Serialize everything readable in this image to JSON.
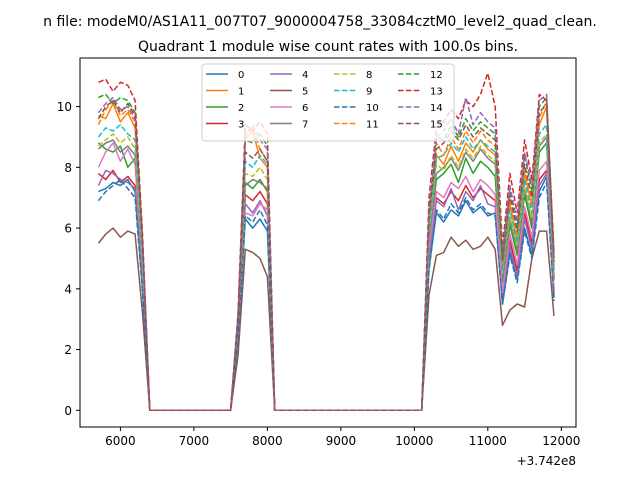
{
  "chart_data": {
    "type": "line",
    "suptitle": "n file: modeM0/AS1A11_007T07_9000004758_33084cztM0_level2_quad_clean.",
    "title": "Quadrant 1 module wise count rates with 100.0s bins.",
    "xlabel": "",
    "ylabel": "",
    "x_offset_label": "+3.742e8",
    "xlim": [
      5450,
      12200
    ],
    "ylim": [
      -0.55,
      11.6
    ],
    "xticks": [
      6000,
      7000,
      8000,
      9000,
      10000,
      11000,
      12000
    ],
    "xtick_labels": [
      "6000",
      "7000",
      "8000",
      "9000",
      "10000",
      "11000",
      "12000"
    ],
    "yticks": [
      0,
      2,
      4,
      6,
      8,
      10
    ],
    "ytick_labels": [
      "0",
      "2",
      "4",
      "6",
      "8",
      "10"
    ],
    "grid": false,
    "legend_position": "top-center",
    "legend_columns": 4,
    "x": [
      5700,
      5800,
      5900,
      6000,
      6100,
      6200,
      6300,
      6400,
      7500,
      7600,
      7700,
      7800,
      7900,
      8000,
      8100,
      10100,
      10200,
      10300,
      10400,
      10500,
      10600,
      10700,
      10800,
      10900,
      11000,
      11100,
      11200,
      11300,
      11400,
      11500,
      11600,
      11700,
      11800,
      11900
    ],
    "series": [
      {
        "name": "0",
        "color": "#1f77b4",
        "dash": "solid",
        "values": [
          7.2,
          7.3,
          7.5,
          7.4,
          7.6,
          7.2,
          4.0,
          0,
          0,
          2.3,
          6.3,
          6.0,
          6.3,
          5.9,
          0,
          0,
          4.7,
          6.5,
          6.2,
          6.6,
          6.4,
          6.9,
          6.5,
          6.7,
          6.4,
          6.5,
          3.5,
          5.2,
          4.3,
          6.0,
          5.1,
          7.2,
          7.7,
          3.7
        ]
      },
      {
        "name": "1",
        "color": "#ff7f0e",
        "dash": "solid",
        "values": [
          9.7,
          9.6,
          10.1,
          9.5,
          9.8,
          9.3,
          5.3,
          0,
          0,
          2.8,
          8.9,
          9.2,
          8.3,
          8.0,
          0,
          0,
          6.1,
          8.4,
          8.1,
          8.7,
          8.2,
          8.8,
          8.5,
          8.9,
          8.6,
          8.4,
          4.7,
          6.8,
          5.6,
          7.8,
          6.7,
          9.4,
          10.0,
          4.7
        ]
      },
      {
        "name": "2",
        "color": "#2ca02c",
        "dash": "solid",
        "values": [
          8.8,
          8.6,
          8.5,
          8.7,
          8.0,
          8.3,
          4.7,
          0,
          0,
          2.6,
          7.5,
          7.3,
          7.6,
          7.2,
          0,
          0,
          5.5,
          7.6,
          7.8,
          8.1,
          7.5,
          8.3,
          7.8,
          8.2,
          8.0,
          7.7,
          4.2,
          6.1,
          5.1,
          7.1,
          6.0,
          8.5,
          8.8,
          4.3
        ]
      },
      {
        "name": "3",
        "color": "#d62728",
        "dash": "solid",
        "values": [
          7.8,
          7.6,
          7.9,
          7.5,
          7.7,
          7.4,
          4.2,
          0,
          0,
          2.4,
          7.1,
          6.9,
          7.2,
          6.8,
          0,
          0,
          5.2,
          7.0,
          6.8,
          7.2,
          6.9,
          7.4,
          7.0,
          7.3,
          7.1,
          6.9,
          3.8,
          5.6,
          4.6,
          6.5,
          5.5,
          7.6,
          7.9,
          3.9
        ]
      },
      {
        "name": "4",
        "color": "#9467bd",
        "dash": "solid",
        "values": [
          7.4,
          7.9,
          7.8,
          7.6,
          7.5,
          7.3,
          4.1,
          0,
          0,
          2.3,
          6.8,
          6.5,
          6.9,
          6.4,
          0,
          0,
          5.0,
          6.9,
          6.7,
          7.3,
          6.6,
          7.2,
          6.9,
          7.4,
          6.8,
          6.7,
          3.7,
          5.4,
          4.4,
          6.3,
          5.3,
          7.4,
          7.8,
          3.8
        ]
      },
      {
        "name": "5",
        "color": "#8c564b",
        "dash": "solid",
        "values": [
          5.5,
          5.8,
          6.0,
          5.7,
          5.9,
          5.8,
          3.2,
          0,
          0,
          1.8,
          5.3,
          5.2,
          5.0,
          4.4,
          0,
          0,
          3.8,
          5.1,
          5.2,
          5.7,
          5.4,
          5.6,
          5.3,
          5.4,
          5.7,
          5.3,
          2.8,
          3.3,
          3.5,
          3.4,
          5.0,
          5.9,
          5.9,
          3.1
        ]
      },
      {
        "name": "6",
        "color": "#e377c2",
        "dash": "solid",
        "values": [
          8.0,
          8.5,
          8.8,
          8.2,
          8.6,
          8.1,
          4.6,
          0,
          0,
          2.5,
          6.5,
          6.4,
          6.8,
          6.6,
          0,
          0,
          5.3,
          7.2,
          7.0,
          7.5,
          7.3,
          7.7,
          7.2,
          7.6,
          7.4,
          7.1,
          3.9,
          5.8,
          4.8,
          6.7,
          5.7,
          7.9,
          8.2,
          4.0
        ]
      },
      {
        "name": "7",
        "color": "#7f7f7f",
        "dash": "solid",
        "values": [
          8.6,
          8.8,
          8.9,
          8.5,
          8.7,
          8.4,
          4.8,
          0,
          0,
          2.7,
          7.4,
          7.6,
          7.5,
          7.3,
          0,
          0,
          5.6,
          7.8,
          8.0,
          8.3,
          7.9,
          8.5,
          8.2,
          8.6,
          8.3,
          8.1,
          4.4,
          6.3,
          5.3,
          7.3,
          6.2,
          8.7,
          9.0,
          4.4
        ]
      },
      {
        "name": "8",
        "color": "#bcbd22",
        "dash": "dashed",
        "values": [
          8.7,
          8.9,
          9.1,
          8.8,
          9.0,
          8.6,
          4.9,
          0,
          0,
          2.7,
          7.8,
          7.7,
          8.0,
          7.6,
          0,
          0,
          5.8,
          8.1,
          7.9,
          8.4,
          8.0,
          8.6,
          8.3,
          8.7,
          8.4,
          8.2,
          4.5,
          6.4,
          5.4,
          7.4,
          6.3,
          8.8,
          9.1,
          4.5
        ]
      },
      {
        "name": "9",
        "color": "#17becf",
        "dash": "dashed",
        "values": [
          9.0,
          9.3,
          9.2,
          9.4,
          9.1,
          8.9,
          5.0,
          0,
          0,
          2.8,
          8.2,
          8.0,
          8.4,
          8.1,
          0,
          0,
          5.9,
          8.3,
          8.4,
          8.8,
          8.5,
          9.0,
          8.6,
          8.9,
          8.7,
          8.5,
          4.6,
          6.6,
          5.5,
          7.6,
          6.5,
          9.1,
          9.4,
          4.6
        ]
      },
      {
        "name": "10",
        "color": "#1f77b4",
        "dash": "dashed",
        "values": [
          6.9,
          7.2,
          7.4,
          7.6,
          7.3,
          7.0,
          3.9,
          0,
          0,
          2.2,
          6.4,
          6.2,
          6.6,
          6.1,
          0,
          0,
          4.6,
          6.6,
          6.3,
          6.8,
          6.5,
          7.0,
          6.6,
          6.8,
          6.5,
          6.4,
          3.5,
          5.1,
          4.2,
          5.9,
          5.0,
          7.0,
          7.5,
          3.6
        ]
      },
      {
        "name": "11",
        "color": "#ff7f0e",
        "dash": "dashed",
        "values": [
          9.4,
          9.9,
          10.2,
          9.7,
          9.9,
          9.5,
          5.4,
          0,
          0,
          3.0,
          9.0,
          9.3,
          8.6,
          8.2,
          0,
          0,
          6.3,
          8.8,
          8.4,
          9.0,
          8.6,
          9.2,
          8.8,
          9.2,
          8.9,
          8.7,
          4.8,
          7.0,
          5.8,
          8.0,
          6.9,
          9.6,
          10.2,
          4.8
        ]
      },
      {
        "name": "12",
        "color": "#2ca02c",
        "dash": "dashed",
        "values": [
          10.3,
          10.4,
          10.1,
          10.3,
          10.2,
          9.8,
          5.6,
          0,
          0,
          3.0,
          8.9,
          8.8,
          9.1,
          8.7,
          0,
          0,
          6.6,
          9.0,
          8.9,
          9.4,
          9.0,
          9.6,
          9.2,
          9.5,
          9.3,
          9.1,
          5.0,
          7.3,
          6.0,
          8.4,
          7.2,
          10.0,
          10.3,
          5.0
        ]
      },
      {
        "name": "13",
        "color": "#d62728",
        "dash": "dashed",
        "values": [
          10.8,
          10.9,
          10.5,
          10.8,
          10.7,
          10.2,
          5.8,
          0,
          0,
          3.2,
          9.4,
          9.2,
          9.5,
          9.1,
          0,
          0,
          7.0,
          9.3,
          9.5,
          9.9,
          9.6,
          10.2,
          10.0,
          10.4,
          11.1,
          10.0,
          5.4,
          7.8,
          6.5,
          8.9,
          7.6,
          10.4,
          10.2,
          5.2
        ]
      },
      {
        "name": "14",
        "color": "#9467bd",
        "dash": "dashed",
        "values": [
          9.8,
          10.1,
          10.3,
          9.9,
          10.0,
          9.6,
          5.5,
          0,
          0,
          3.0,
          9.1,
          9.4,
          8.9,
          8.6,
          0,
          0,
          6.7,
          9.0,
          9.2,
          9.6,
          9.1,
          10.3,
          9.4,
          9.8,
          9.5,
          9.3,
          5.2,
          7.4,
          6.2,
          8.5,
          7.4,
          10.2,
          10.4,
          5.0
        ]
      },
      {
        "name": "15",
        "color": "#8c564b",
        "dash": "dashed",
        "values": [
          9.6,
          10.0,
          10.2,
          9.8,
          10.1,
          9.7,
          5.5,
          0,
          0,
          2.9,
          8.5,
          8.3,
          8.6,
          8.2,
          0,
          0,
          6.4,
          8.6,
          8.8,
          9.2,
          8.9,
          9.4,
          9.0,
          9.3,
          9.1,
          8.9,
          4.9,
          7.1,
          5.9,
          8.1,
          7.0,
          9.8,
          10.1,
          4.9
        ]
      }
    ]
  }
}
